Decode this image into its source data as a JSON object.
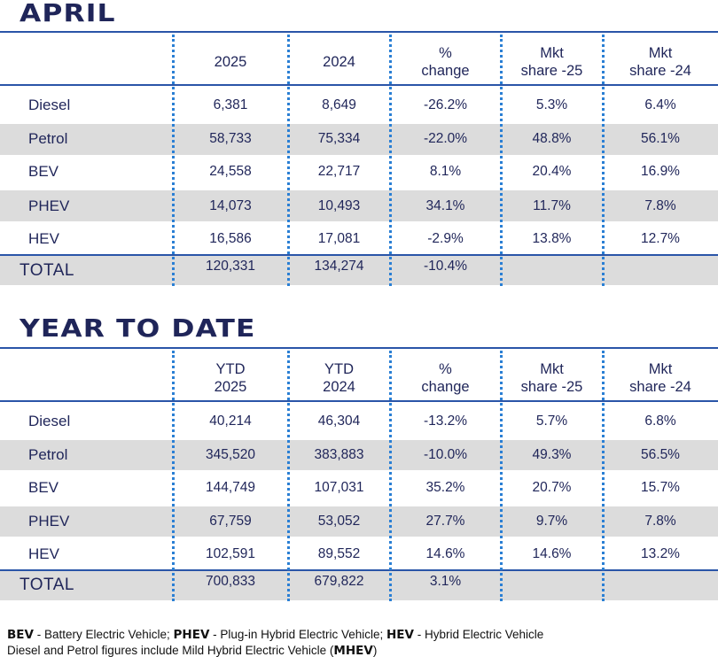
{
  "april": {
    "title": "APRIL",
    "headers": [
      [
        "",
        ""
      ],
      [
        "2025",
        ""
      ],
      [
        "2024",
        ""
      ],
      [
        "%",
        "change"
      ],
      [
        "Mkt",
        "share -25"
      ],
      [
        "Mkt",
        "share -24"
      ]
    ],
    "rows": [
      [
        "Diesel",
        "6,381",
        "8,649",
        "-26.2%",
        "5.3%",
        "6.4%"
      ],
      [
        "Petrol",
        "58,733",
        "75,334",
        "-22.0%",
        "48.8%",
        "56.1%"
      ],
      [
        "BEV",
        "24,558",
        "22,717",
        "8.1%",
        "20.4%",
        "16.9%"
      ],
      [
        "PHEV",
        "14,073",
        "10,493",
        "34.1%",
        "11.7%",
        "7.8%"
      ],
      [
        "HEV",
        "16,586",
        "17,081",
        "-2.9%",
        "13.8%",
        "12.7%"
      ]
    ],
    "total": [
      "TOTAL",
      "120,331",
      "134,274",
      "-10.4%",
      "",
      ""
    ]
  },
  "ytd": {
    "title": "YEAR TO DATE",
    "headers": [
      [
        "",
        ""
      ],
      [
        "YTD",
        "2025"
      ],
      [
        "YTD",
        "2024"
      ],
      [
        "%",
        "change"
      ],
      [
        "Mkt",
        "share -25"
      ],
      [
        "Mkt",
        "share -24"
      ]
    ],
    "rows": [
      [
        "Diesel",
        "40,214",
        "46,304",
        "-13.2%",
        "5.7%",
        "6.8%"
      ],
      [
        "Petrol",
        "345,520",
        "383,883",
        "-10.0%",
        "49.3%",
        "56.5%"
      ],
      [
        "BEV",
        "144,749",
        "107,031",
        "35.2%",
        "20.7%",
        "15.7%"
      ],
      [
        "PHEV",
        "67,759",
        "53,052",
        "27.7%",
        "9.7%",
        "7.8%"
      ],
      [
        "HEV",
        "102,591",
        "89,552",
        "14.6%",
        "14.6%",
        "13.2%"
      ]
    ],
    "total": [
      "TOTAL",
      "700,833",
      "679,822",
      "3.1%",
      "",
      ""
    ]
  },
  "footer": {
    "bev_abbr": "BEV",
    "bev_text": " - Battery Electric Vehicle; ",
    "phev_abbr": "PHEV",
    "phev_text": " - Plug-in Hybrid Electric Vehicle; ",
    "hev_abbr": "HEV",
    "hev_text": " - Hybrid Electric Vehicle",
    "line2_pre": "Diesel and Petrol figures include Mild Hybrid Electric Vehicle (",
    "mhev_abbr": "MHEV",
    "line2_post": ")"
  },
  "colors": {
    "text": "#1f2559",
    "rule": "#2a55a8",
    "dots": "#2a7fd4",
    "shade": "#dcdcdc"
  }
}
